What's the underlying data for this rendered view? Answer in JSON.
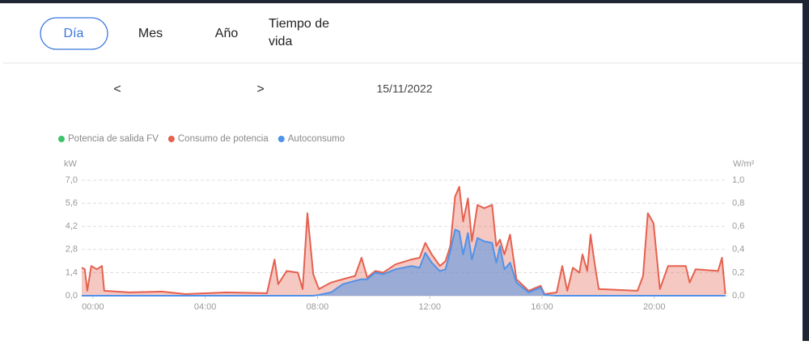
{
  "tabs": [
    "Día",
    "Mes",
    "Año",
    "Tiempo de vida"
  ],
  "active_tab": 0,
  "nav": {
    "prev": "<",
    "next": ">",
    "date": "15/11/2022"
  },
  "chart_data": {
    "type": "line",
    "area": true,
    "ylabel": "kW",
    "y2label": "W/m²",
    "grid": true,
    "legend": "top-left",
    "x": [
      -0.4,
      -0.29,
      -0.2,
      -0.06,
      0.14,
      0.32,
      0.4,
      1.3,
      2.45,
      3.3,
      4.75,
      6.2,
      6.47,
      6.6,
      6.9,
      7.3,
      7.47,
      7.64,
      7.85,
      8.05,
      8.48,
      8.9,
      9.34,
      9.57,
      9.77,
      10.06,
      10.34,
      10.78,
      11.35,
      11.64,
      11.84,
      12.07,
      12.36,
      12.56,
      12.73,
      12.9,
      13.05,
      13.19,
      13.36,
      13.5,
      13.7,
      13.94,
      14.22,
      14.37,
      14.5,
      14.66,
      14.86,
      15.09,
      15.52,
      15.95,
      16.09,
      16.52,
      16.72,
      16.9,
      17.1,
      17.33,
      17.44,
      17.61,
      17.73,
      17.87,
      18.02,
      19.4,
      19.6,
      19.77,
      19.97,
      20.2,
      20.49,
      21.12,
      21.26,
      21.47,
      22.27,
      22.41,
      22.53
    ],
    "series": [
      {
        "name": "Potencia de salida FV",
        "color": "#3cc46a",
        "values": [
          null,
          null,
          null,
          null,
          null,
          null,
          null,
          null,
          null,
          null,
          null,
          null,
          null,
          null,
          null,
          null,
          null,
          null,
          null,
          null,
          null,
          null,
          null,
          null,
          null,
          null,
          null,
          null,
          null,
          null,
          null,
          null,
          null,
          null,
          null,
          null,
          null,
          null,
          null,
          null,
          null,
          null,
          null,
          null,
          null,
          null,
          null,
          null,
          null,
          null,
          null,
          null,
          null,
          null,
          null,
          null,
          null,
          null,
          null,
          null,
          null,
          null,
          null,
          null,
          null,
          null,
          null,
          null,
          null,
          null,
          null,
          null,
          null
        ]
      },
      {
        "name": "Consumo de potencia",
        "color": "#e5614f",
        "values": [
          1.7,
          1.6,
          0.3,
          1.8,
          1.6,
          1.8,
          0.3,
          0.2,
          0.25,
          0.1,
          0.2,
          0.15,
          2.2,
          0.7,
          1.5,
          1.4,
          0.4,
          5.0,
          1.3,
          0.4,
          0.8,
          1.0,
          1.2,
          2.3,
          1.1,
          1.5,
          1.4,
          1.9,
          2.2,
          2.3,
          3.2,
          2.5,
          1.8,
          2.1,
          3.0,
          6.0,
          6.6,
          4.5,
          5.9,
          3.3,
          5.5,
          5.3,
          5.5,
          3.0,
          3.4,
          2.5,
          3.7,
          1.0,
          0.3,
          0.6,
          0.1,
          0.2,
          1.8,
          0.3,
          1.7,
          1.4,
          2.5,
          1.5,
          3.7,
          2.0,
          0.4,
          0.3,
          1.2,
          5.0,
          4.4,
          0.4,
          1.8,
          1.8,
          0.8,
          1.6,
          1.5,
          2.3,
          0.1
        ]
      },
      {
        "name": "Autoconsumo",
        "color": "#4f93e8",
        "values": [
          0,
          0,
          0,
          0,
          0,
          0,
          0,
          0,
          0,
          0,
          0,
          0,
          0,
          0,
          0,
          0,
          0,
          0,
          0,
          0.05,
          0.2,
          0.7,
          0.9,
          1.0,
          1.0,
          1.4,
          1.3,
          1.6,
          1.8,
          1.7,
          2.6,
          2.0,
          1.5,
          1.6,
          2.7,
          4.0,
          3.9,
          2.5,
          3.8,
          2.2,
          3.5,
          3.3,
          3.2,
          2.0,
          3.0,
          1.6,
          2.0,
          0.8,
          0.2,
          0.5,
          0.05,
          0,
          0,
          0,
          0,
          0,
          0,
          0,
          0,
          0,
          0,
          0,
          0,
          0,
          0,
          0,
          0,
          0,
          0,
          0,
          0,
          0,
          0
        ]
      }
    ],
    "xlim": [
      -0.4,
      22.6
    ],
    "xticks": [
      {
        "value": 0,
        "label": "00:00"
      },
      {
        "value": 4,
        "label": "04:00"
      },
      {
        "value": 8,
        "label": "08:00"
      },
      {
        "value": 12,
        "label": "12:00"
      },
      {
        "value": 16,
        "label": "16:00"
      },
      {
        "value": 20,
        "label": "20:00"
      }
    ],
    "ylim": [
      0,
      7
    ],
    "yticks": [
      {
        "value": 0,
        "label": "0,0"
      },
      {
        "value": 1.4,
        "label": "1,4"
      },
      {
        "value": 2.8,
        "label": "2,8"
      },
      {
        "value": 4.2,
        "label": "4,2"
      },
      {
        "value": 5.6,
        "label": "5,6"
      },
      {
        "value": 7,
        "label": "7,0"
      }
    ],
    "y2lim": [
      0,
      1
    ],
    "y2ticks": [
      {
        "value": 0,
        "label": "0,0"
      },
      {
        "value": 0.2,
        "label": "0,2"
      },
      {
        "value": 0.4,
        "label": "0,4"
      },
      {
        "value": 0.6,
        "label": "0,6"
      },
      {
        "value": 0.8,
        "label": "0,8"
      },
      {
        "value": 1,
        "label": "1,0"
      }
    ]
  }
}
